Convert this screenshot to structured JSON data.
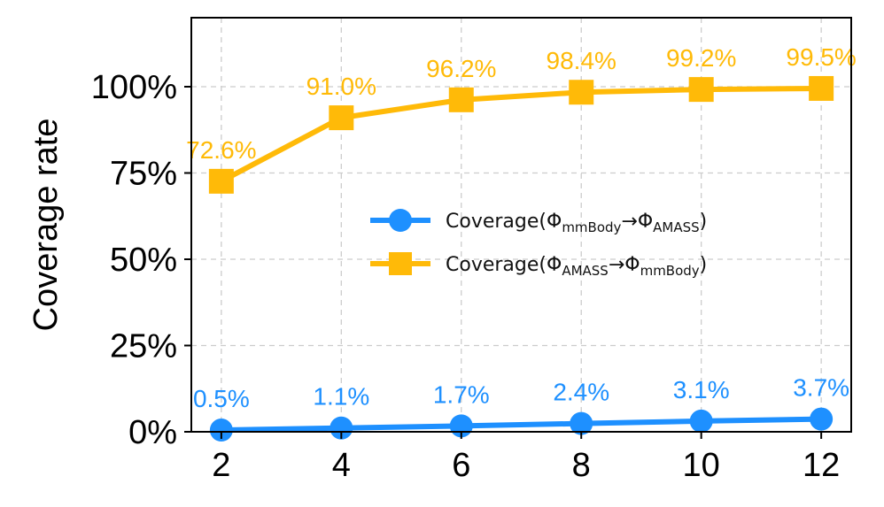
{
  "chart_data": {
    "type": "line",
    "ylabel": "Coverage rate",
    "xlabel": "",
    "x": [
      2,
      4,
      6,
      8,
      10,
      12
    ],
    "xticks": [
      "2",
      "4",
      "6",
      "8",
      "10",
      "12"
    ],
    "xlim": [
      1.5,
      12.5
    ],
    "ylim": [
      0,
      120
    ],
    "yticks": [
      0,
      25,
      50,
      75,
      100
    ],
    "ytick_labels": [
      "0%",
      "25%",
      "50%",
      "75%",
      "100%"
    ],
    "grid": true,
    "legend_position": "center-right",
    "series": [
      {
        "name_main": "Coverage(Φ",
        "name_sub1": "mmBody",
        "name_arrow": "→Φ",
        "name_sub2": "AMASS",
        "name_close": ")",
        "color": "#1E90FF",
        "marker": "circle",
        "values": [
          0.5,
          1.1,
          1.7,
          2.4,
          3.1,
          3.7
        ],
        "labels": [
          "0.5%",
          "1.1%",
          "1.7%",
          "2.4%",
          "3.1%",
          "3.7%"
        ]
      },
      {
        "name_main": "Coverage(Φ",
        "name_sub1": "AMASS",
        "name_arrow": "→Φ",
        "name_sub2": "mmBody",
        "name_close": ")",
        "color": "#FFBA08",
        "marker": "square",
        "values": [
          72.6,
          91.0,
          96.2,
          98.4,
          99.2,
          99.5
        ],
        "labels": [
          "72.6%",
          "91.0%",
          "96.2%",
          "98.4%",
          "99.2%",
          "99.5%"
        ]
      }
    ]
  }
}
